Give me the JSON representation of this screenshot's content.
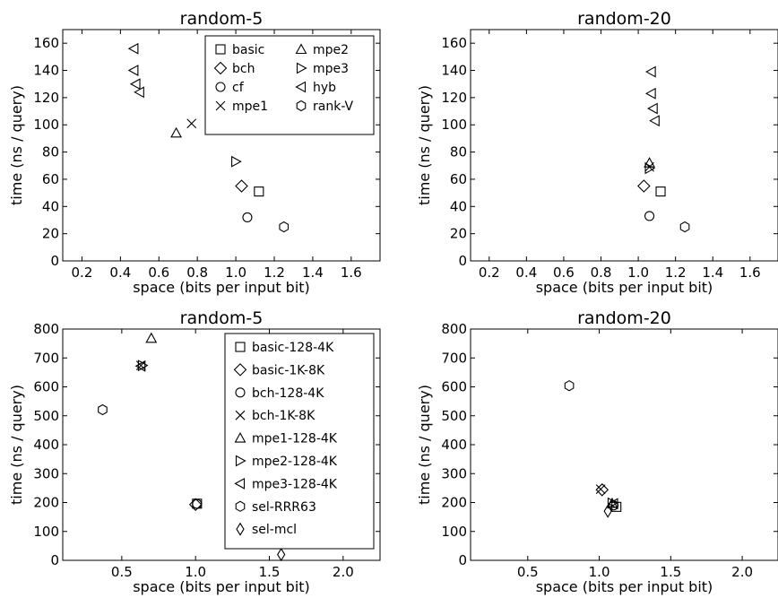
{
  "chart_data": [
    {
      "type": "scatter",
      "title": "random-5",
      "xlabel": "space (bits per input bit)",
      "ylabel": "time (ns / query)",
      "xlim": [
        0.1,
        1.75
      ],
      "ylim": [
        0,
        170
      ],
      "xticks": [
        "0.2",
        "0.4",
        "0.6",
        "0.8",
        "1.0",
        "1.2",
        "1.4",
        "1.6"
      ],
      "yticks": [
        "0",
        "20",
        "40",
        "60",
        "80",
        "100",
        "120",
        "140",
        "160"
      ],
      "legend": {
        "position": "top-right",
        "columns": 2
      },
      "series": [
        {
          "name": "basic",
          "marker": "square",
          "points": [
            [
              1.12,
              51
            ]
          ]
        },
        {
          "name": "bch",
          "marker": "diamond",
          "points": [
            [
              1.03,
              55
            ]
          ]
        },
        {
          "name": "cf",
          "marker": "circle",
          "points": [
            [
              1.06,
              32
            ]
          ]
        },
        {
          "name": "mpe1",
          "marker": "x",
          "points": [
            [
              0.77,
              101
            ]
          ]
        },
        {
          "name": "mpe2",
          "marker": "triangle-up",
          "points": [
            [
              0.69,
              94
            ]
          ]
        },
        {
          "name": "mpe3",
          "marker": "triangle-right",
          "points": [
            [
              1.0,
              73
            ]
          ]
        },
        {
          "name": "hyb",
          "marker": "triangle-left",
          "points": [
            [
              0.47,
              156
            ],
            [
              0.47,
              140
            ],
            [
              0.48,
              130
            ],
            [
              0.5,
              124
            ]
          ]
        },
        {
          "name": "rank-V",
          "marker": "hexagon",
          "points": [
            [
              1.25,
              25
            ]
          ]
        }
      ]
    },
    {
      "type": "scatter",
      "title": "random-20",
      "xlabel": "space (bits per input bit)",
      "ylabel": "time (ns / query)",
      "xlim": [
        0.1,
        1.75
      ],
      "ylim": [
        0,
        170
      ],
      "xticks": [
        "0.2",
        "0.4",
        "0.6",
        "0.8",
        "1.0",
        "1.2",
        "1.4",
        "1.6"
      ],
      "yticks": [
        "0",
        "20",
        "40",
        "60",
        "80",
        "100",
        "120",
        "140",
        "160"
      ],
      "series": [
        {
          "name": "basic",
          "marker": "square",
          "points": [
            [
              1.12,
              51
            ]
          ]
        },
        {
          "name": "bch",
          "marker": "diamond",
          "points": [
            [
              1.03,
              55
            ]
          ]
        },
        {
          "name": "cf",
          "marker": "circle",
          "points": [
            [
              1.06,
              33
            ]
          ]
        },
        {
          "name": "mpe1",
          "marker": "x",
          "points": [
            [
              1.06,
              69
            ]
          ]
        },
        {
          "name": "mpe2",
          "marker": "triangle-up",
          "points": [
            [
              1.06,
              72
            ]
          ]
        },
        {
          "name": "mpe3",
          "marker": "triangle-right",
          "points": [
            [
              1.06,
              68
            ]
          ]
        },
        {
          "name": "hyb",
          "marker": "triangle-left",
          "points": [
            [
              1.07,
              139
            ],
            [
              1.07,
              123
            ],
            [
              1.08,
              112
            ],
            [
              1.09,
              103
            ]
          ]
        },
        {
          "name": "rank-V",
          "marker": "hexagon",
          "points": [
            [
              1.25,
              25
            ]
          ]
        }
      ]
    },
    {
      "type": "scatter",
      "title": "random-5",
      "xlabel": "space (bits per input bit)",
      "ylabel": "time (ns / query)",
      "xlim": [
        0.1,
        2.25
      ],
      "ylim": [
        0,
        800
      ],
      "xticks": [
        "0.5",
        "1.0",
        "1.5",
        "2.0"
      ],
      "yticks": [
        "0",
        "100",
        "200",
        "300",
        "400",
        "500",
        "600",
        "700",
        "800"
      ],
      "legend": {
        "position": "top-right",
        "columns": 1
      },
      "series": [
        {
          "name": "basic-128-4K",
          "marker": "square",
          "points": [
            [
              1.01,
              196
            ]
          ]
        },
        {
          "name": "basic-1K-8K",
          "marker": "diamond",
          "points": [
            [
              1.0,
              193
            ]
          ]
        },
        {
          "name": "bch-128-4K",
          "marker": "circle",
          "points": [
            [
              1.01,
              195
            ]
          ]
        },
        {
          "name": "bch-1K-8K",
          "marker": "x",
          "points": [
            [
              0.63,
              674
            ]
          ]
        },
        {
          "name": "mpe1-128-4K",
          "marker": "triangle-up",
          "points": [
            [
              0.7,
              768
            ]
          ]
        },
        {
          "name": "mpe2-128-4K",
          "marker": "triangle-right",
          "points": [
            [
              0.64,
              674
            ]
          ]
        },
        {
          "name": "mpe3-128-4K",
          "marker": "triangle-left",
          "points": [
            [
              0.63,
              672
            ]
          ]
        },
        {
          "name": "sel-RRR63",
          "marker": "hexagon",
          "points": [
            [
              0.37,
              521
            ]
          ]
        },
        {
          "name": "sel-mcl",
          "marker": "thin-diamond",
          "points": [
            [
              1.58,
              20
            ]
          ]
        }
      ]
    },
    {
      "type": "scatter",
      "title": "random-20",
      "xlabel": "space (bits per input bit)",
      "ylabel": "time (ns / query)",
      "xlim": [
        0.1,
        2.25
      ],
      "ylim": [
        0,
        800
      ],
      "xticks": [
        "0.5",
        "1.0",
        "1.5",
        "2.0"
      ],
      "yticks": [
        "0",
        "100",
        "200",
        "300",
        "400",
        "500",
        "600",
        "700",
        "800"
      ],
      "series": [
        {
          "name": "basic-128-4K",
          "marker": "square",
          "points": [
            [
              1.12,
              185
            ]
          ]
        },
        {
          "name": "basic-1K-8K",
          "marker": "diamond",
          "points": [
            [
              1.02,
              244
            ]
          ]
        },
        {
          "name": "bch-128-4K",
          "marker": "circle",
          "points": [
            [
              1.1,
              190
            ]
          ]
        },
        {
          "name": "bch-1K-8K",
          "marker": "x",
          "points": [
            [
              1.01,
              246
            ]
          ]
        },
        {
          "name": "mpe1-128-4K",
          "marker": "triangle-up",
          "points": [
            [
              1.09,
              197
            ]
          ]
        },
        {
          "name": "mpe2-128-4K",
          "marker": "triangle-right",
          "points": [
            [
              1.09,
              198
            ]
          ]
        },
        {
          "name": "mpe3-128-4K",
          "marker": "triangle-left",
          "points": [
            [
              1.1,
              196
            ]
          ]
        },
        {
          "name": "sel-RRR63",
          "marker": "hexagon",
          "points": [
            [
              0.79,
              604
            ]
          ]
        },
        {
          "name": "sel-mcl",
          "marker": "thin-diamond",
          "points": [
            [
              1.06,
              170
            ]
          ]
        }
      ]
    }
  ]
}
